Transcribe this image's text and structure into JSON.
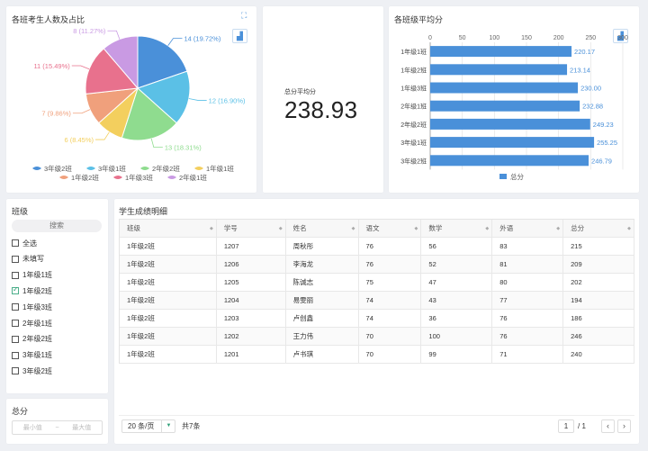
{
  "pie_card": {
    "title": "各班考生人数及占比",
    "tools": {
      "fullscreen": "⛶",
      "chart_type": "▟"
    }
  },
  "kpi": {
    "label": "总分平均分",
    "value": "238.93"
  },
  "bar_card": {
    "title": "各班级平均分"
  },
  "chart_data": [
    {
      "type": "pie",
      "title": "各班考生人数及占比",
      "slices": [
        {
          "name": "3年级2班",
          "value": 14,
          "label": "14 (19.72%)",
          "color": "#4a90d9"
        },
        {
          "name": "3年级1班",
          "value": 12,
          "label": "12 (16.90%)",
          "color": "#5bc0e6"
        },
        {
          "name": "2年级2班",
          "value": 13,
          "label": "13 (18.31%)",
          "color": "#8fdc8f"
        },
        {
          "name": "1年级1班",
          "value": 6,
          "label": "6 (8.45%)",
          "color": "#f3cf5e"
        },
        {
          "name": "1年级2班",
          "value": 7,
          "label": "7 (9.86%)",
          "color": "#f0a07c"
        },
        {
          "name": "1年级3班",
          "value": 11,
          "label": "11 (15.49%)",
          "color": "#e8718d"
        },
        {
          "name": "2年级1班",
          "value": 8,
          "label": "8 (11.27%)",
          "color": "#c99ae3"
        }
      ],
      "legend_position": "bottom"
    },
    {
      "type": "bar",
      "orientation": "horizontal",
      "title": "各班级平均分",
      "categories": [
        "1年级1班",
        "1年级2班",
        "1年级3班",
        "2年级1班",
        "2年级2班",
        "3年级1班",
        "3年级2班"
      ],
      "series": [
        {
          "name": "总分",
          "values": [
            220.17,
            213.14,
            230.0,
            232.88,
            249.23,
            255.25,
            246.79
          ],
          "labels": [
            "220.17",
            "213.14",
            "230.00",
            "232.88",
            "249.23",
            "255.25",
            "246.79"
          ]
        }
      ],
      "xlim": [
        0,
        300
      ],
      "xticks": [
        "0",
        "50",
        "100",
        "150",
        "200",
        "250",
        "300"
      ],
      "color": "#4a90d9",
      "grid": true,
      "legend_position": "bottom"
    }
  ],
  "filter": {
    "title": "班级",
    "search_placeholder": "搜索",
    "items": [
      {
        "label": "全选",
        "checked": false
      },
      {
        "label": "未填写",
        "checked": false
      },
      {
        "label": "1年级1班",
        "checked": false
      },
      {
        "label": "1年级2班",
        "checked": true
      },
      {
        "label": "1年级3班",
        "checked": false
      },
      {
        "label": "2年级1班",
        "checked": false
      },
      {
        "label": "2年级2班",
        "checked": false
      },
      {
        "label": "3年级1班",
        "checked": false
      },
      {
        "label": "3年级2班",
        "checked": false
      }
    ]
  },
  "range": {
    "title": "总分",
    "min_placeholder": "最小值",
    "separator": "~",
    "max_placeholder": "最大值"
  },
  "table": {
    "title": "学生成绩明细",
    "columns": [
      "班级",
      "学号",
      "姓名",
      "语文",
      "数学",
      "外语",
      "总分"
    ],
    "rows": [
      [
        "1年级2班",
        "1207",
        "周秋彤",
        "76",
        "56",
        "83",
        "215"
      ],
      [
        "1年级2班",
        "1206",
        "李海龙",
        "76",
        "52",
        "81",
        "209"
      ],
      [
        "1年级2班",
        "1205",
        "陈诚志",
        "75",
        "47",
        "80",
        "202"
      ],
      [
        "1年级2班",
        "1204",
        "易雯丽",
        "74",
        "43",
        "77",
        "194"
      ],
      [
        "1年级2班",
        "1203",
        "卢创鑫",
        "74",
        "36",
        "76",
        "186"
      ],
      [
        "1年级2班",
        "1202",
        "王力伟",
        "70",
        "100",
        "76",
        "246"
      ],
      [
        "1年级2班",
        "1201",
        "卢书琪",
        "70",
        "99",
        "71",
        "240"
      ]
    ],
    "sort_icon": "◆"
  },
  "pager": {
    "page_size": "20 条/页",
    "total": "共7条",
    "current_page": "1",
    "of_pages": "/ 1",
    "prev": "‹",
    "next": "›",
    "dropdown_arrow": "▼"
  }
}
